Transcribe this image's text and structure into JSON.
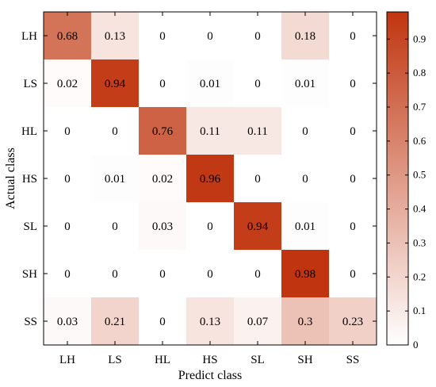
{
  "chart_data": {
    "type": "heatmap",
    "title": "",
    "xlabel": "Predict class",
    "ylabel": "Actual class",
    "x_categories": [
      "LH",
      "LS",
      "HL",
      "HS",
      "SL",
      "SH",
      "SS"
    ],
    "y_categories": [
      "LH",
      "LS",
      "HL",
      "HS",
      "SL",
      "SH",
      "SS"
    ],
    "values": [
      [
        0.68,
        0.13,
        0,
        0,
        0,
        0.18,
        0
      ],
      [
        0.02,
        0.94,
        0,
        0.01,
        0,
        0.01,
        0
      ],
      [
        0,
        0,
        0.76,
        0.11,
        0.11,
        0,
        0
      ],
      [
        0,
        0.01,
        0.02,
        0.96,
        0,
        0,
        0
      ],
      [
        0,
        0,
        0.03,
        0,
        0.94,
        0.01,
        0
      ],
      [
        0,
        0,
        0,
        0,
        0,
        0.98,
        0
      ],
      [
        0.03,
        0.21,
        0,
        0.13,
        0.07,
        0.3,
        0.23
      ]
    ],
    "colorbar": {
      "range": [
        0,
        0.98
      ],
      "ticks": [
        0,
        0.1,
        0.2,
        0.3,
        0.4,
        0.5,
        0.6,
        0.7,
        0.8,
        0.9
      ],
      "tick_labels": [
        "0",
        "0.1",
        "0.2",
        "0.3",
        "0.4",
        "0.5",
        "0.6",
        "0.7",
        "0.8",
        "0.9"
      ],
      "low_color": "#ffffff",
      "high_color": "#c0350f"
    },
    "grid": false,
    "legend": "colorbar-right"
  }
}
